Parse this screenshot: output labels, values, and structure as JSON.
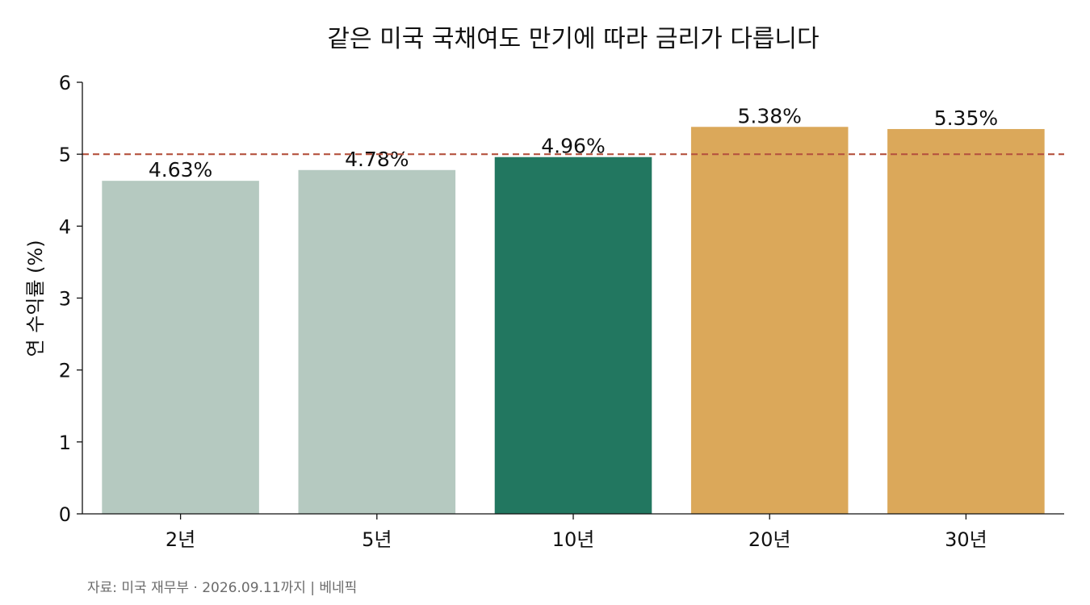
{
  "chart_data": {
    "type": "bar",
    "title": "같은 미국 국채여도 만기에 따라 금리가 다릅니다",
    "ylabel": "연 수익률 (%)",
    "xlabel": "",
    "categories": [
      "2년",
      "5년",
      "10년",
      "20년",
      "30년"
    ],
    "values": [
      4.63,
      4.78,
      4.96,
      5.38,
      5.35
    ],
    "value_labels": [
      "4.63%",
      "4.78%",
      "4.96%",
      "5.38%",
      "5.35%"
    ],
    "bar_colors": [
      "#b5c9c0",
      "#b5c9c0",
      "#227760",
      "#dba85a",
      "#dba85a"
    ],
    "ylim": [
      0,
      6
    ],
    "yticks": [
      0,
      1,
      2,
      3,
      4,
      5,
      6
    ],
    "ytick_labels": [
      "0",
      "1",
      "2",
      "3",
      "4",
      "5",
      "6"
    ],
    "reference_line": {
      "value": 5,
      "style": "dashed",
      "color": "#b5533f"
    },
    "grid": false,
    "source": "자료: 미국 재무부 · 2026.09.11까지 | 베네픽"
  }
}
